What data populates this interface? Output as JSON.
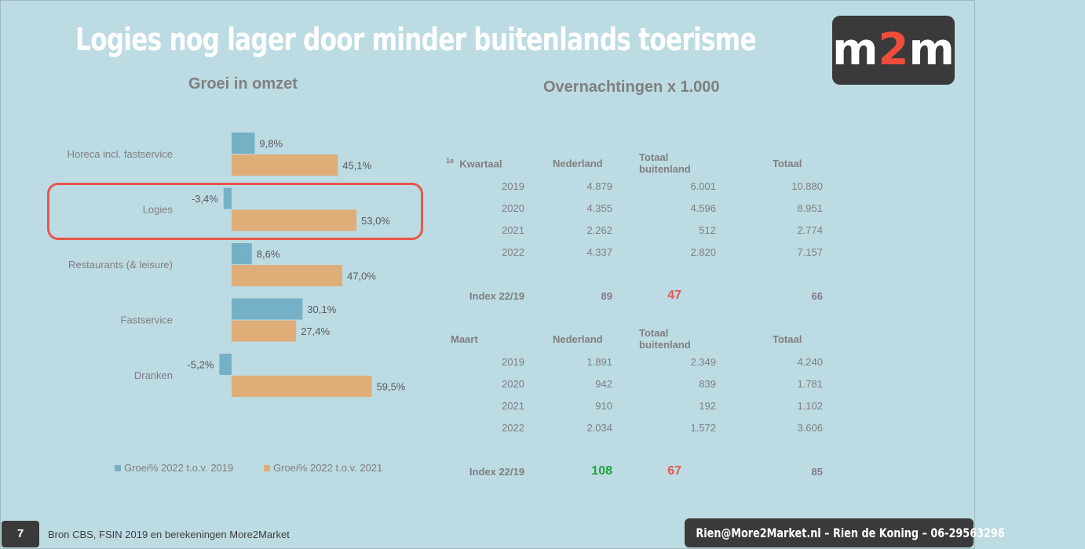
{
  "slide": {
    "title": "Logies nog lager door minder buitenlands toerisme",
    "logo_left": "m",
    "logo_mid": "2",
    "logo_right": "m",
    "page_number": "7",
    "source": "Bron CBS, FSIN 2019 en berekeningen More2Market",
    "contact": "Rien@More2Market.nl – Rien de Koning – 06-29563296"
  },
  "left_heading": "Groei in omzet",
  "right_heading": "Overnachtingen x 1.000",
  "colors": {
    "series1": "#74b0c6",
    "series2": "#dfad77",
    "highlight": "#e8574b",
    "index_red": "#e8574b",
    "index_green": "#22a33a"
  },
  "chart_data": {
    "type": "bar",
    "orientation": "horizontal",
    "categories": [
      "Horeca incl. fastservice",
      "Logies",
      "Restaurants (& leisure)",
      "Fastservice",
      "Dranken"
    ],
    "series": [
      {
        "name": "Groei% 2022 t.o.v. 2019",
        "values": [
          9.8,
          -3.4,
          8.6,
          30.1,
          -5.2
        ],
        "labels": [
          "9,8%",
          "-3,4%",
          "8,6%",
          "30,1%",
          "-5,2%"
        ]
      },
      {
        "name": "Groei% 2022 t.o.v. 2021",
        "values": [
          45.1,
          53.0,
          47.0,
          27.4,
          59.5
        ],
        "labels": [
          "45,1%",
          "53,0%",
          "47,0%",
          "27,4%",
          "59,5%"
        ]
      }
    ],
    "highlighted_category": "Logies",
    "legend": "bottom",
    "grid": false
  },
  "table_q1": {
    "period_sup": "1e",
    "period": "Kwartaal",
    "headers": [
      "Nederland",
      "Totaal buitenland",
      "Totaal"
    ],
    "rows": [
      {
        "year": "2019",
        "nl": "4.879",
        "bl": "6.001",
        "tot": "10.880"
      },
      {
        "year": "2020",
        "nl": "4.355",
        "bl": "4.596",
        "tot": "8.951"
      },
      {
        "year": "2021",
        "nl": "2.262",
        "bl": "512",
        "tot": "2.774"
      },
      {
        "year": "2022",
        "nl": "4.337",
        "bl": "2.820",
        "tot": "7.157"
      }
    ],
    "index": {
      "label": "Index 22/19",
      "nl": "89",
      "bl": "47",
      "tot": "66"
    }
  },
  "table_march": {
    "period": "Maart",
    "headers": [
      "Nederland",
      "Totaal buitenland",
      "Totaal"
    ],
    "rows": [
      {
        "year": "2019",
        "nl": "1.891",
        "bl": "2.349",
        "tot": "4.240"
      },
      {
        "year": "2020",
        "nl": "942",
        "bl": "839",
        "tot": "1.781"
      },
      {
        "year": "2021",
        "nl": "910",
        "bl": "192",
        "tot": "1.102"
      },
      {
        "year": "2022",
        "nl": "2.034",
        "bl": "1.572",
        "tot": "3.606"
      }
    ],
    "index": {
      "label": "Index 22/19",
      "nl": "108",
      "bl": "67",
      "tot": "85"
    }
  }
}
